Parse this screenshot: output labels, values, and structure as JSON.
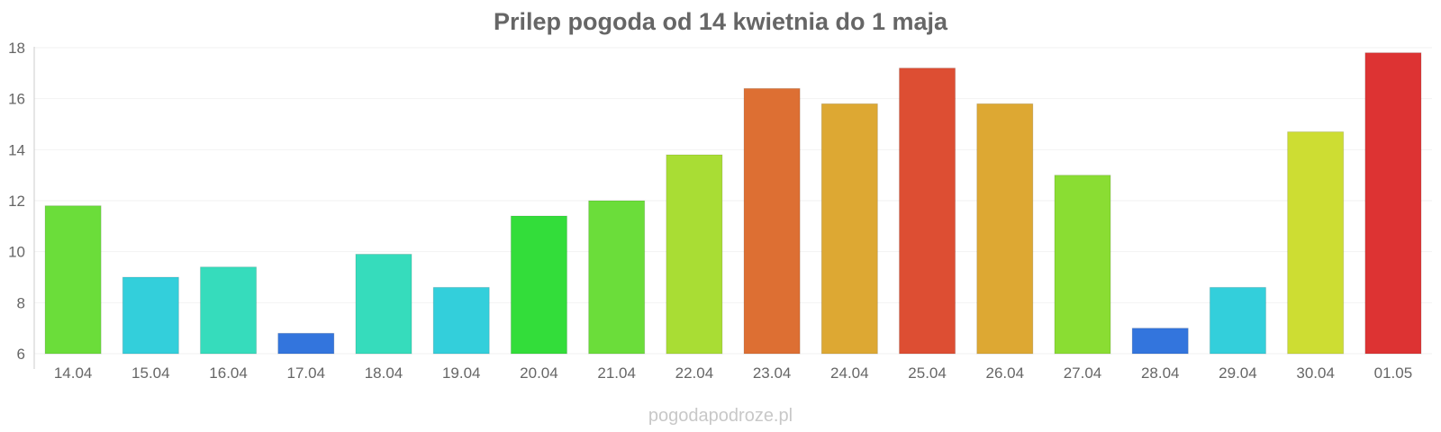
{
  "chart_data": {
    "type": "bar",
    "title": "Prilep pogoda od 14 kwietnia do 1 maja",
    "xlabel": "",
    "ylabel": "",
    "ylim": [
      6,
      18
    ],
    "yticks": [
      6,
      8,
      10,
      12,
      14,
      16,
      18
    ],
    "grid": true,
    "legend": "none",
    "categories": [
      "14.04",
      "15.04",
      "16.04",
      "17.04",
      "18.04",
      "19.04",
      "20.04",
      "21.04",
      "22.04",
      "23.04",
      "24.04",
      "25.04",
      "26.04",
      "27.04",
      "28.04",
      "29.04",
      "30.04",
      "01.05"
    ],
    "values": [
      11.8,
      9.0,
      9.4,
      6.8,
      9.9,
      8.6,
      11.4,
      12.0,
      13.8,
      16.4,
      15.8,
      17.2,
      15.8,
      13.0,
      7.0,
      8.6,
      14.7,
      17.8
    ],
    "colors": [
      "#6bdd3a",
      "#33cfdb",
      "#36dcbc",
      "#3375dd",
      "#36dcbc",
      "#33cfdb",
      "#33dd3a",
      "#6bdd3a",
      "#a9dd34",
      "#dd6f33",
      "#dda833",
      "#dd4e33",
      "#dda833",
      "#8add33",
      "#3375dd",
      "#33cfdb",
      "#cddd33",
      "#dd3333"
    ]
  },
  "source": "pogodapodroze.pl"
}
